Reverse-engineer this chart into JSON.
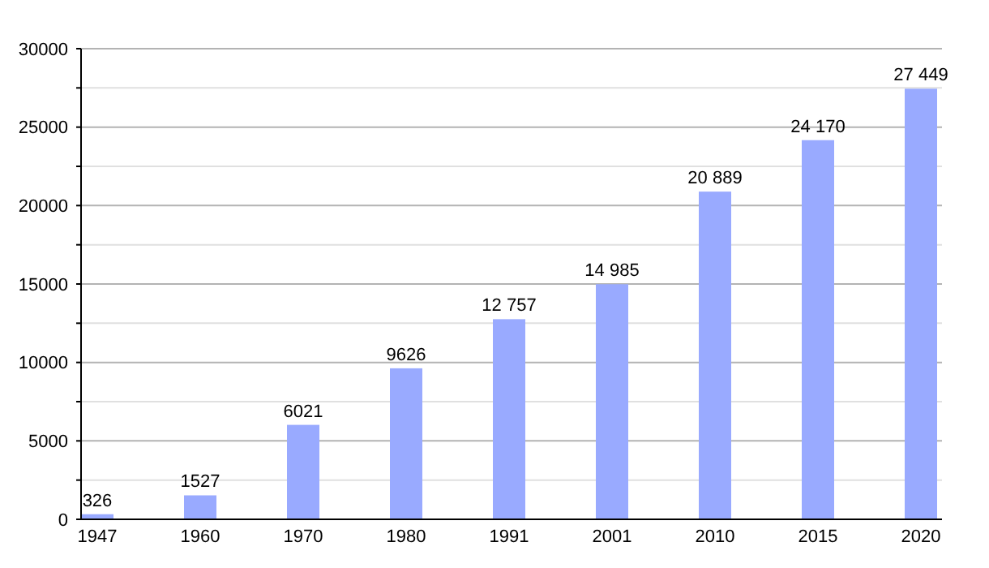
{
  "chart_data": {
    "type": "bar",
    "categories": [
      "1947",
      "1960",
      "1970",
      "1980",
      "1991",
      "2001",
      "2010",
      "2015",
      "2020"
    ],
    "values": [
      326,
      1527,
      6021,
      9626,
      12757,
      14985,
      20889,
      24170,
      27449
    ],
    "value_labels": [
      "326",
      "1527",
      "6021",
      "9626",
      "12 757",
      "14 985",
      "20 889",
      "24 170",
      "27 449"
    ],
    "color": "#99aaff",
    "ylim": [
      0,
      30000
    ],
    "yticks": [
      0,
      {
        "value": 2500,
        "label": null
      },
      5000,
      {
        "value": 7500,
        "label": null
      },
      10000,
      {
        "value": 12500,
        "label": null
      },
      15000,
      {
        "value": 17500,
        "label": null
      },
      20000,
      {
        "value": 22500,
        "label": null
      },
      25000,
      {
        "value": 27500,
        "label": null
      },
      30000
    ],
    "grid": true
  }
}
